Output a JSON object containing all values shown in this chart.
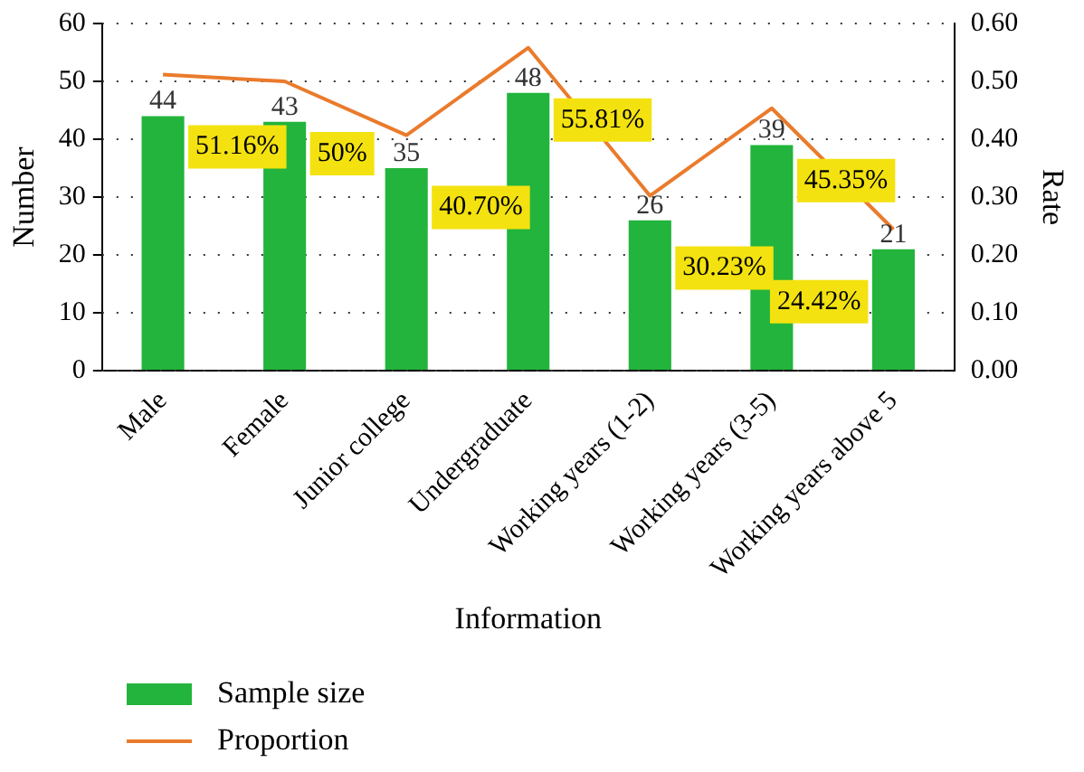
{
  "chart_data": {
    "type": "bar",
    "xlabel": "Information",
    "ylabel": "Number",
    "y2label": "Rate",
    "categories": [
      "Male",
      "Female",
      "Junior college",
      "Undergraduate",
      "Working years (1-2)",
      "Working years (3-5)",
      "Working years above 5"
    ],
    "series": [
      {
        "name": "Sample size",
        "color": "#22b43c",
        "values": [
          44,
          43,
          35,
          48,
          26,
          39,
          21
        ]
      },
      {
        "name": "Proportion",
        "type": "line",
        "axis": "y2",
        "color": "#ea7b2c",
        "values": [
          0.5116,
          0.5,
          0.407,
          0.5581,
          0.3023,
          0.4535,
          0.2442
        ],
        "value_labels": [
          "51.16%",
          "50%",
          "40.70%",
          "55.81%",
          "30.23%",
          "45.35%",
          "24.42%"
        ]
      }
    ],
    "ylim": [
      0,
      60
    ],
    "yticks": [
      0,
      10,
      20,
      30,
      40,
      50,
      60
    ],
    "y2lim": [
      0,
      0.6
    ],
    "y2ticks": [
      {
        "value": 0,
        "label": "0.00"
      },
      {
        "value": 0.1,
        "label": "0.10"
      },
      {
        "value": 0.2,
        "label": "0.20"
      },
      {
        "value": 0.3,
        "label": "0.30"
      },
      {
        "value": 0.4,
        "label": "0.40"
      },
      {
        "value": 0.5,
        "label": "0.50"
      },
      {
        "value": 0.6,
        "label": "0.60"
      }
    ],
    "grid": "y",
    "legend": "bottom left",
    "data_labels": true,
    "marker": "none",
    "line_style": "solid"
  }
}
